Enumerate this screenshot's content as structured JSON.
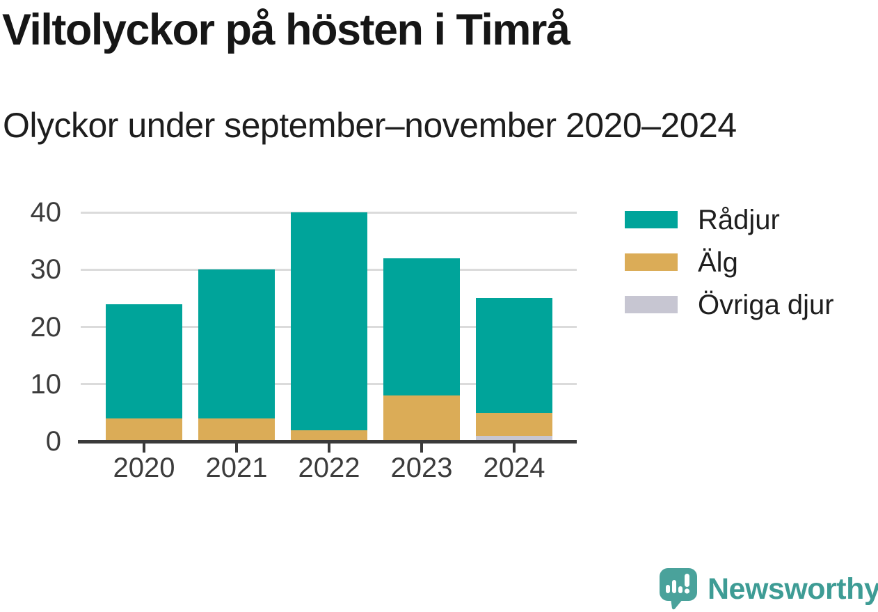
{
  "title": "Viltolyckor på hösten i Timrå",
  "subtitle": "Olyckor under september–november 2020–2024",
  "chart_data": {
    "type": "bar",
    "stacked": true,
    "title": "Viltolyckor på hösten i Timrå",
    "subtitle": "Olyckor under september–november 2020–2024",
    "categories": [
      "2020",
      "2021",
      "2022",
      "2023",
      "2024"
    ],
    "series": [
      {
        "name": "Rådjur",
        "key": "radjur",
        "color": "#00a49a",
        "values": [
          20,
          26,
          38,
          24,
          20
        ]
      },
      {
        "name": "Älg",
        "key": "alg",
        "color": "#dbac57",
        "values": [
          4,
          4,
          2,
          8,
          4
        ]
      },
      {
        "name": "Övriga djur",
        "key": "ovriga-djur",
        "color": "#c7c6d2",
        "values": [
          0,
          0,
          0,
          0,
          1
        ]
      }
    ],
    "totals": [
      24,
      30,
      40,
      32,
      25
    ],
    "stack_order_bottom_to_top": [
      "Övriga djur",
      "Älg",
      "Rådjur"
    ],
    "xlabel": "",
    "ylabel": "",
    "ylim": [
      0,
      40
    ],
    "yticks": [
      0,
      10,
      20,
      30,
      40
    ],
    "grid": "horizontal",
    "legend_position": "right",
    "colors": {
      "gridline": "#dbdbdb",
      "axis": "#3a3a3a",
      "tick_label": "#3c3c3c"
    }
  },
  "branding": {
    "logo_text": "Newsworthy",
    "logo_icon": "speech-bubble-bar-chart-icon",
    "logo_color": "#4aa29b",
    "logo_text_color": "#3e9c95"
  }
}
